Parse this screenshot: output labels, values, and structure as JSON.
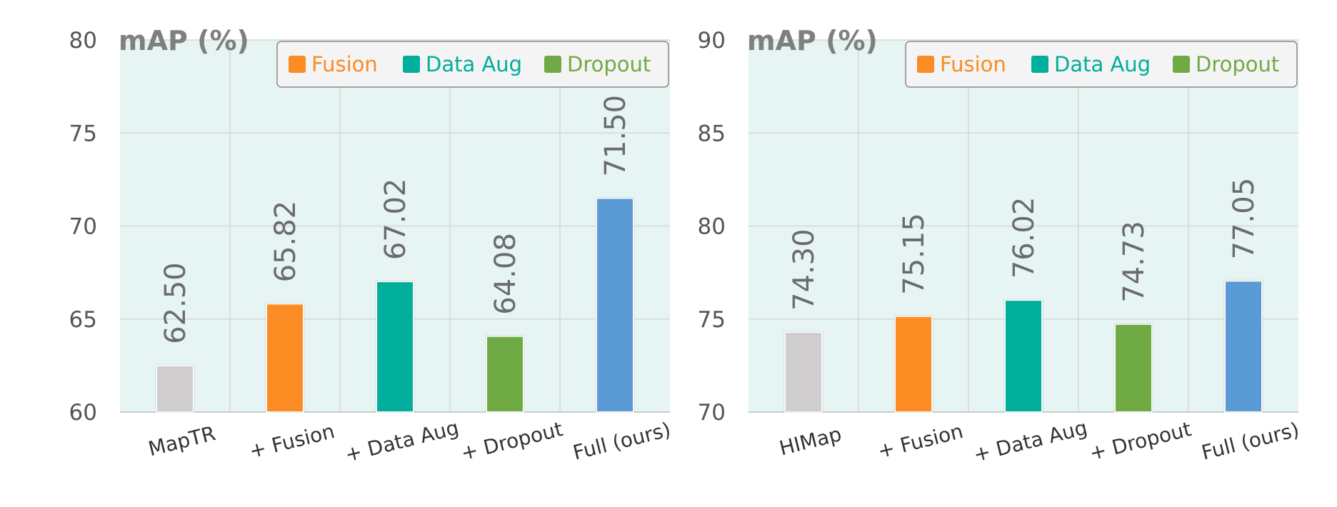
{
  "colors": {
    "baseline": "#cfcdcd",
    "fusion": "#fa8c23",
    "data_aug": "#00ae9b",
    "dropout": "#70aa45",
    "full": "#5a9bd5",
    "plot_bg": "#e6f5f3",
    "grid": "#d3d8d7"
  },
  "chart_data": [
    {
      "type": "bar",
      "ylabel": "mAP (%)",
      "ylim": [
        60,
        80
      ],
      "yticks": [
        60,
        65,
        70,
        75,
        80
      ],
      "categories": [
        "MapTR",
        "+ Fusion",
        "+ Data Aug",
        "+ Dropout",
        "Full (ours)"
      ],
      "values": [
        62.5,
        65.82,
        67.02,
        64.08,
        71.5
      ],
      "value_labels": [
        "62.50",
        "65.82",
        "67.02",
        "64.08",
        "71.50"
      ],
      "bar_colors": [
        "#cfcdcd",
        "#fa8c23",
        "#00ae9b",
        "#70aa45",
        "#5a9bd5"
      ],
      "legend": [
        {
          "label": "Fusion",
          "color": "#fa8c23"
        },
        {
          "label": "Data Aug",
          "color": "#00ae9b"
        },
        {
          "label": "Dropout",
          "color": "#70aa45"
        }
      ],
      "legend_position": "top-right",
      "grid": true
    },
    {
      "type": "bar",
      "ylabel": "mAP (%)",
      "ylim": [
        70,
        90
      ],
      "yticks": [
        70,
        75,
        80,
        85,
        90
      ],
      "categories": [
        "HIMap",
        "+ Fusion",
        "+ Data Aug",
        "+ Dropout",
        "Full (ours)"
      ],
      "values": [
        74.3,
        75.15,
        76.02,
        74.73,
        77.05
      ],
      "value_labels": [
        "74.30",
        "75.15",
        "76.02",
        "74.73",
        "77.05"
      ],
      "bar_colors": [
        "#cfcdcd",
        "#fa8c23",
        "#00ae9b",
        "#70aa45",
        "#5a9bd5"
      ],
      "legend": [
        {
          "label": "Fusion",
          "color": "#fa8c23"
        },
        {
          "label": "Data Aug",
          "color": "#00ae9b"
        },
        {
          "label": "Dropout",
          "color": "#70aa45"
        }
      ],
      "legend_position": "top-right",
      "grid": true
    }
  ]
}
